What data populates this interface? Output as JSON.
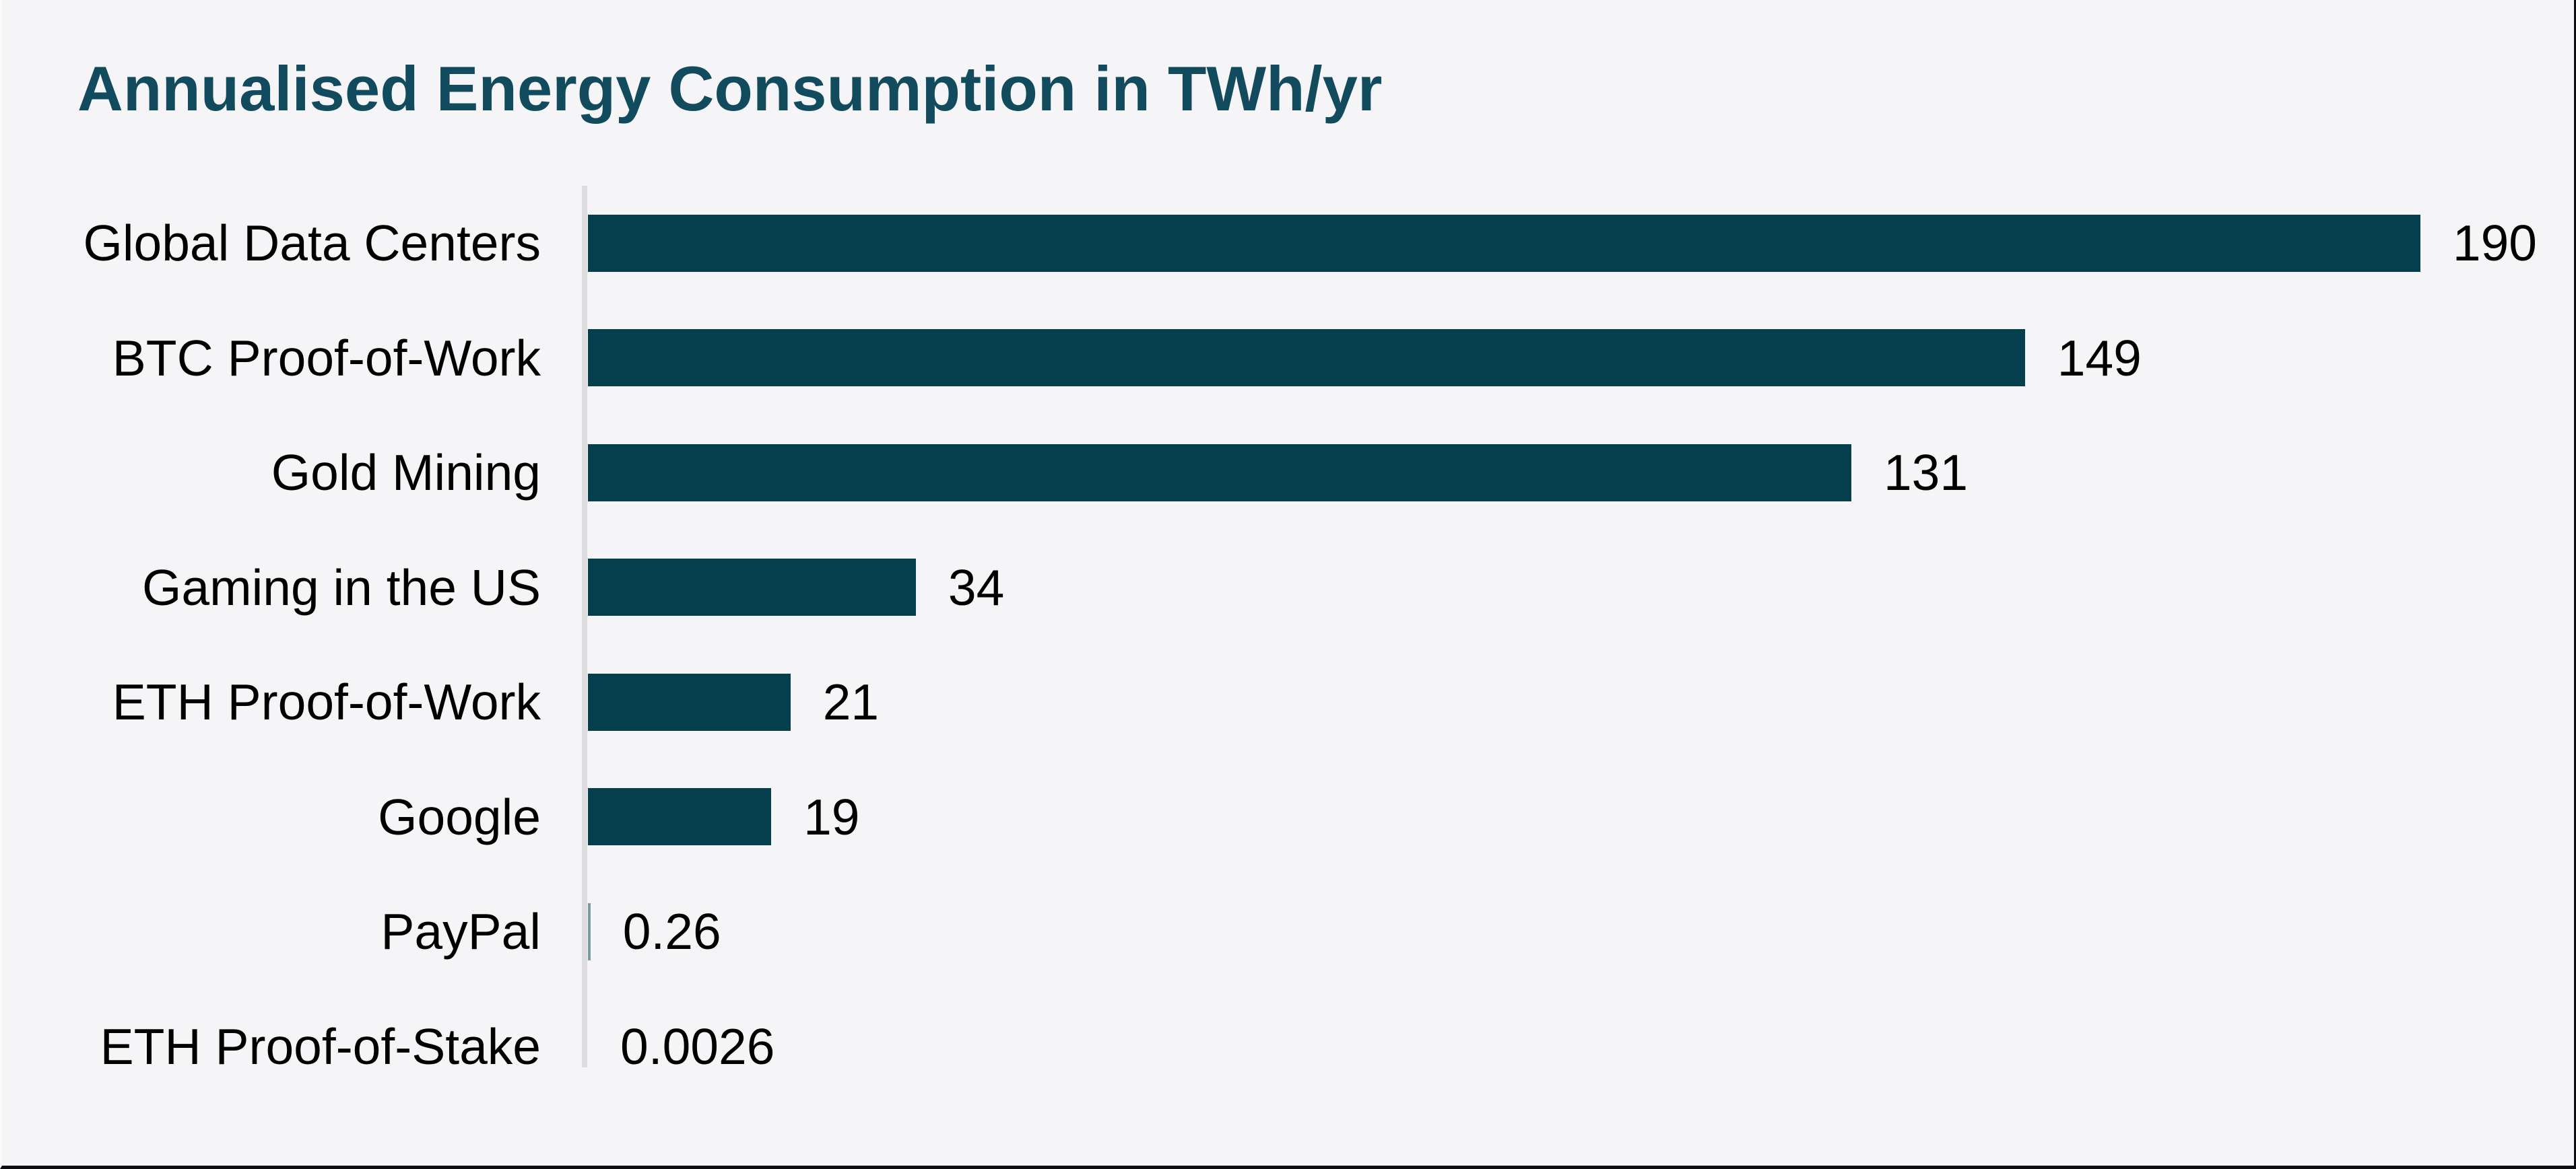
{
  "chart_data": {
    "type": "bar",
    "orientation": "horizontal",
    "title": "Annualised Energy Consumption in TWh/yr",
    "categories": [
      "Global Data Centers",
      "BTC Proof-of-Work",
      "Gold Mining",
      "Gaming in the US",
      "ETH Proof-of-Work",
      "Google",
      "PayPal",
      "ETH Proof-of-Stake"
    ],
    "values": [
      190,
      149,
      131,
      34,
      21,
      19,
      0.26,
      0.0026
    ],
    "value_labels": [
      "190",
      "149",
      "131",
      "34",
      "21",
      "19",
      "0.26",
      "0.0026"
    ],
    "xlabel": "",
    "ylabel": "",
    "xlim": [
      0,
      206
    ],
    "grid": false,
    "legend": false,
    "value_labels_position": "right-of-bar",
    "category_labels_position": "left-axis",
    "colors": {
      "background": "#f5f4f6",
      "bar": "#053f4e",
      "sliver_bar": "#7d99a2",
      "title": "#114b5d",
      "label_text": "#000000",
      "axis_line": "#dcdcde",
      "edge_border": "#0e0e12"
    }
  }
}
